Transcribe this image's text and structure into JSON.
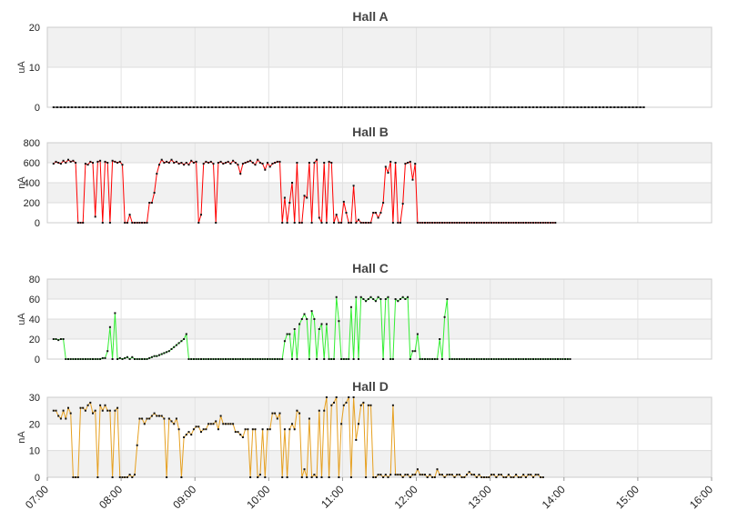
{
  "chart_data": [
    {
      "type": "line",
      "title": "Hall A",
      "ylabel": "uA",
      "ylim": [
        0,
        20
      ],
      "yticks": [
        "0",
        "10",
        "20"
      ],
      "color": "#000000",
      "series": [
        {
          "x_start": "07:05",
          "x_step_minutes": 3,
          "values": [
            0,
            0,
            0,
            0,
            0,
            0,
            0,
            0,
            0,
            0,
            0,
            0,
            0,
            0,
            0,
            0,
            0,
            0,
            0,
            0,
            0,
            0,
            0,
            0,
            0,
            0,
            0,
            0,
            0,
            0,
            0,
            0,
            0,
            0,
            0,
            0,
            0,
            0,
            0,
            0,
            0,
            0,
            0,
            0,
            0,
            0,
            0,
            0,
            0,
            0,
            0,
            0,
            0,
            0,
            0,
            0,
            0,
            0,
            0,
            0,
            0,
            0,
            0,
            0,
            0,
            0,
            0,
            0,
            0,
            0,
            0,
            0,
            0,
            0,
            0,
            0,
            0,
            0,
            0,
            0,
            0,
            0,
            0,
            0,
            0,
            0,
            0,
            0,
            0,
            0,
            0,
            0,
            0,
            0,
            0,
            0,
            0,
            0,
            0,
            0,
            0,
            0,
            0,
            0,
            0,
            0,
            0,
            0,
            0,
            0,
            0,
            0,
            0,
            0,
            0,
            0,
            0,
            0,
            0,
            0,
            0,
            0,
            0,
            0,
            0,
            0,
            0,
            0,
            0,
            0,
            0,
            0,
            0,
            0,
            0,
            0,
            0,
            0,
            0,
            0,
            0,
            0,
            0,
            0,
            0,
            0,
            0,
            0,
            0,
            0,
            0,
            0,
            0,
            0,
            0,
            0,
            0,
            0,
            0,
            0,
            0
          ]
        }
      ]
    },
    {
      "type": "line",
      "title": "Hall B",
      "ylabel": "nA",
      "ylim": [
        0,
        800
      ],
      "yticks": [
        "0",
        "200",
        "400",
        "600",
        "800"
      ],
      "color": "#ff0000",
      "series": [
        {
          "x_start": "07:05",
          "x_step_minutes": 2,
          "values": [
            590,
            610,
            600,
            590,
            620,
            600,
            630,
            610,
            620,
            600,
            0,
            0,
            0,
            590,
            580,
            610,
            600,
            60,
            610,
            620,
            0,
            610,
            600,
            0,
            620,
            610,
            600,
            610,
            580,
            0,
            0,
            80,
            0,
            0,
            0,
            0,
            0,
            0,
            0,
            200,
            200,
            300,
            490,
            580,
            630,
            600,
            610,
            600,
            630,
            600,
            610,
            590,
            600,
            580,
            600,
            580,
            620,
            600,
            610,
            0,
            80,
            590,
            610,
            600,
            610,
            590,
            0,
            600,
            610,
            590,
            600,
            610,
            590,
            620,
            600,
            580,
            490,
            590,
            600,
            610,
            620,
            600,
            580,
            630,
            600,
            590,
            530,
            600,
            560,
            590,
            600,
            610,
            610,
            0,
            250,
            0,
            200,
            400,
            0,
            600,
            0,
            0,
            270,
            250,
            600,
            0,
            600,
            630,
            50,
            0,
            600,
            0,
            610,
            600,
            0,
            80,
            0,
            0,
            210,
            100,
            0,
            0,
            370,
            0,
            30,
            0,
            0,
            0,
            0,
            0,
            100,
            100,
            50,
            100,
            200,
            560,
            500,
            610,
            0,
            600,
            0,
            0,
            190,
            590,
            600,
            610,
            430,
            590,
            0,
            0,
            0,
            0,
            0,
            0,
            0,
            0,
            0,
            0,
            0,
            0,
            0,
            0,
            0,
            0,
            0,
            0,
            0,
            0,
            0,
            0,
            0,
            0,
            0,
            0,
            0,
            0,
            0,
            0,
            0,
            0,
            0,
            0,
            0,
            0,
            0,
            0,
            0,
            0,
            0,
            0,
            0,
            0,
            0,
            0,
            0,
            0,
            0,
            0,
            0,
            0,
            0,
            0,
            0,
            0,
            0
          ]
        }
      ]
    },
    {
      "type": "line",
      "title": "Hall C",
      "ylabel": "uA",
      "ylim": [
        0,
        80
      ],
      "yticks": [
        "0",
        "20",
        "40",
        "60",
        "80"
      ],
      "color": "#33ee33",
      "series": [
        {
          "x_start": "07:05",
          "x_step_minutes": 2,
          "values": [
            20,
            20,
            19,
            20,
            20,
            0,
            0,
            0,
            0,
            0,
            0,
            0,
            0,
            0,
            0,
            0,
            0,
            0,
            0,
            0,
            1,
            1,
            8,
            32,
            0,
            46,
            0,
            1,
            0,
            1,
            2,
            0,
            2,
            0,
            0,
            0,
            0,
            0,
            0,
            1,
            2,
            3,
            3,
            4,
            5,
            6,
            7,
            8,
            10,
            12,
            14,
            16,
            18,
            20,
            25,
            0,
            0,
            0,
            0,
            0,
            0,
            0,
            0,
            0,
            0,
            0,
            0,
            0,
            0,
            0,
            0,
            0,
            0,
            0,
            0,
            0,
            0,
            0,
            0,
            0,
            0,
            0,
            0,
            0,
            0,
            0,
            0,
            0,
            0,
            0,
            0,
            0,
            0,
            0,
            18,
            25,
            25,
            0,
            30,
            0,
            35,
            40,
            45,
            40,
            0,
            48,
            40,
            0,
            30,
            35,
            0,
            35,
            0,
            0,
            0,
            62,
            38,
            0,
            0,
            0,
            0,
            52,
            0,
            62,
            0,
            62,
            60,
            58,
            60,
            62,
            60,
            58,
            62,
            60,
            0,
            60,
            62,
            0,
            0,
            60,
            58,
            60,
            62,
            60,
            62,
            0,
            8,
            8,
            25,
            0,
            0,
            0,
            0,
            0,
            0,
            0,
            0,
            20,
            0,
            42,
            60,
            0,
            0,
            0,
            0,
            0,
            0,
            0,
            0,
            0,
            0,
            0,
            0,
            0,
            0,
            0,
            0,
            0,
            0,
            0,
            0,
            0,
            0,
            0,
            0,
            0,
            0,
            0,
            0,
            0,
            0,
            0,
            0,
            0,
            0,
            0,
            0,
            0,
            0,
            0,
            0,
            0,
            0,
            0,
            0,
            0,
            0,
            0,
            0,
            0,
            0
          ]
        }
      ]
    },
    {
      "type": "line",
      "title": "Hall D",
      "ylabel": "nA",
      "ylim": [
        0,
        30
      ],
      "yticks": [
        "0",
        "10",
        "20",
        "30"
      ],
      "color": "#e6a020",
      "series": [
        {
          "x_start": "07:05",
          "x_step_minutes": 2,
          "values": [
            25,
            25,
            23,
            22,
            25,
            22,
            26,
            24,
            0,
            0,
            0,
            26,
            26,
            25,
            27,
            28,
            24,
            25,
            0,
            27,
            25,
            27,
            25,
            25,
            0,
            25,
            26,
            0,
            0,
            0,
            0,
            1,
            0,
            1,
            12,
            22,
            22,
            20,
            22,
            22,
            23,
            24,
            23,
            23,
            23,
            22,
            0,
            22,
            21,
            20,
            22,
            18,
            0,
            15,
            16,
            17,
            16,
            18,
            19,
            19,
            17,
            18,
            18,
            20,
            20,
            20,
            21,
            18,
            23,
            20,
            20,
            20,
            20,
            20,
            17,
            17,
            16,
            15,
            18,
            18,
            0,
            18,
            18,
            0,
            1,
            18,
            0,
            18,
            18,
            24,
            24,
            22,
            24,
            0,
            18,
            0,
            18,
            20,
            18,
            25,
            24,
            0,
            3,
            0,
            22,
            0,
            1,
            0,
            25,
            0,
            25,
            30,
            0,
            27,
            28,
            30,
            0,
            20,
            27,
            28,
            30,
            0,
            30,
            14,
            20,
            27,
            28,
            0,
            27,
            27,
            0,
            0,
            1,
            1,
            0,
            1,
            0,
            1,
            27,
            1,
            1,
            1,
            0,
            1,
            1,
            0,
            1,
            1,
            3,
            1,
            1,
            1,
            0,
            1,
            0,
            0,
            3,
            1,
            1,
            0,
            1,
            1,
            1,
            0,
            1,
            1,
            0,
            0,
            1,
            2,
            1,
            1,
            0,
            1,
            0,
            0,
            0,
            0,
            1,
            1,
            0,
            1,
            1,
            0,
            0,
            1,
            0,
            0,
            1,
            0,
            0,
            1,
            0,
            1,
            1,
            0,
            1,
            1,
            0,
            0
          ]
        }
      ]
    }
  ],
  "x_axis": {
    "ticks": [
      "07:00",
      "08:00",
      "09:00",
      "10:00",
      "11:00",
      "12:00",
      "13:00",
      "14:00",
      "15:00",
      "16:00"
    ],
    "range": [
      "07:00",
      "16:00"
    ]
  }
}
